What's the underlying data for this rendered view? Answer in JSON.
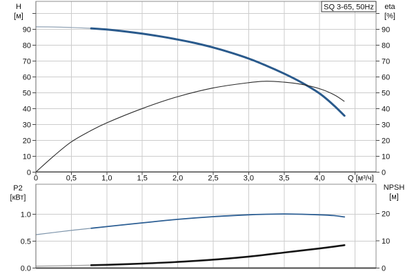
{
  "title_box": {
    "text": "SQ 3-65, 50Hz"
  },
  "colors": {
    "grid": "#cccccc",
    "frame": "#8c8c8c",
    "axis_dark": "#4a4a4a",
    "tick": "#444444",
    "curve_blue": "#2a5a8c",
    "curve_blue_thin": "#90a2b4",
    "curve_black": "#141414",
    "curve_gray_thin": "#9a9a9a",
    "eta_line": "#2b2b2b",
    "p2_line": "#2d5f94",
    "p2_lead": "#7e95ab"
  },
  "chart_data": [
    {
      "type": "line",
      "title": "SQ 3-65, 50Hz",
      "xlabel": "Q [м³/ч]",
      "xlim": [
        0,
        4.8
      ],
      "x_ticks": {
        "values": [
          0,
          0.5,
          1,
          1.5,
          2,
          2.5,
          3,
          3.5,
          4
        ],
        "labels": [
          "0",
          "0,5",
          "1,0",
          "1,5",
          "2,0",
          "2,5",
          "3,0",
          "3,5",
          "4,0"
        ]
      },
      "x_gridlines": [
        0.5,
        1,
        1.5,
        2,
        2.5,
        3,
        3.5,
        4,
        4.5
      ],
      "left_axis": {
        "label": "H",
        "unit": "[м]",
        "lim": [
          0,
          107
        ],
        "tick_values": [
          0,
          10,
          20,
          30,
          40,
          50,
          60,
          70,
          80,
          90
        ],
        "tick_labels": [
          "0",
          "10",
          "20",
          "30",
          "40",
          "50",
          "60",
          "70",
          "80",
          "90"
        ],
        "gridline_values": [
          10,
          20,
          30,
          40,
          50,
          60,
          70,
          80,
          90,
          100
        ]
      },
      "right_axis": {
        "label": "eta",
        "unit": "[%]",
        "lim": [
          0,
          107
        ],
        "tick_values": [
          0,
          10,
          20,
          30,
          40,
          50,
          60,
          70,
          80,
          90
        ],
        "tick_labels": [
          "0",
          "10",
          "20",
          "30",
          "40",
          "50",
          "60",
          "70",
          "80",
          "90"
        ]
      },
      "series": [
        {
          "name": "H",
          "axis": "left",
          "style": "duty-split",
          "thin_until": 0.78,
          "q": [
            0,
            0.25,
            0.5,
            0.75,
            1,
            1.25,
            1.5,
            1.75,
            2,
            2.25,
            2.5,
            2.75,
            3,
            3.25,
            3.5,
            3.75,
            4,
            4.2,
            4.35
          ],
          "v": [
            91.5,
            91.4,
            91.1,
            90.6,
            89.8,
            88.6,
            87.2,
            85.5,
            83.5,
            81.2,
            78.5,
            75.2,
            71.5,
            67.0,
            62.0,
            56.3,
            49.5,
            42.0,
            35.5
          ]
        },
        {
          "name": "eta",
          "axis": "right",
          "style": "thin",
          "q": [
            0,
            0.25,
            0.5,
            0.75,
            1,
            1.5,
            2,
            2.5,
            3,
            3.25,
            3.5,
            3.75,
            4,
            4.2,
            4.35
          ],
          "v": [
            0,
            10,
            19,
            25.5,
            31,
            40,
            47.5,
            53,
            56.3,
            57.2,
            56.6,
            55.2,
            52.5,
            48.8,
            44.5
          ]
        }
      ]
    },
    {
      "type": "line",
      "title": "",
      "xlabel": "",
      "xlim": [
        0,
        4.8
      ],
      "x_gridlines": [
        0.5,
        1,
        1.5,
        2,
        2.5,
        3,
        3.5,
        4,
        4.5
      ],
      "left_axis": {
        "label": "P2",
        "unit": "[кВт]",
        "lim": [
          0,
          1.56
        ],
        "tick_values": [
          0,
          0.5,
          1
        ],
        "tick_labels": [
          "0.0",
          "0.5",
          "1.0"
        ],
        "gridline_values": [
          0.5,
          1
        ]
      },
      "right_axis": {
        "label": "NPSH",
        "unit": "[м]",
        "lim": [
          0,
          31
        ],
        "tick_values": [
          0,
          10,
          20
        ],
        "tick_labels": [
          "0",
          "10",
          "20"
        ]
      },
      "series": [
        {
          "name": "P2",
          "axis": "left",
          "style": "p2-split",
          "thin_until": 0.78,
          "q": [
            0,
            0.5,
            1,
            1.5,
            2,
            2.5,
            3,
            3.25,
            3.5,
            3.75,
            4,
            4.2,
            4.35
          ],
          "v": [
            0.62,
            0.7,
            0.77,
            0.84,
            0.905,
            0.955,
            0.99,
            1.0,
            1.005,
            1.0,
            0.99,
            0.975,
            0.95
          ]
        },
        {
          "name": "NPSH",
          "axis": "right",
          "style": "npsh-split",
          "thin_until": 0.78,
          "q": [
            0,
            0.5,
            1,
            1.5,
            2,
            2.5,
            3,
            3.5,
            4,
            4.35
          ],
          "v": [
            0.7,
            0.9,
            1.2,
            1.65,
            2.25,
            3.1,
            4.2,
            5.7,
            7.2,
            8.4
          ]
        }
      ]
    }
  ]
}
